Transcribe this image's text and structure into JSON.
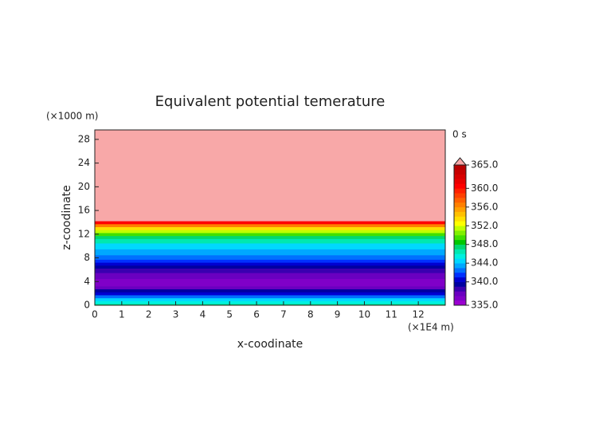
{
  "chart_data": {
    "type": "profile-contour",
    "title": "Equivalent potential temerature",
    "xlabel": "x-coodinate",
    "ylabel": "z-coodinate",
    "x_unit": "(×1E4 m)",
    "y_unit": "(×1000 m)",
    "time_label": "0 s",
    "xlim": [
      0,
      13
    ],
    "xticks": [
      0,
      1,
      2,
      3,
      4,
      5,
      6,
      7,
      8,
      9,
      10,
      11,
      12
    ],
    "ylim": [
      0,
      29.6
    ],
    "yticks": [
      0,
      4,
      8,
      12,
      16,
      20,
      24,
      28
    ],
    "z": [
      0,
      0.5,
      1,
      1.5,
      2,
      2.5,
      3,
      3.5,
      4,
      5,
      6,
      6.5,
      7,
      7.5,
      8,
      9,
      10,
      11,
      11.5,
      12,
      12.5,
      13,
      13.5,
      14,
      14.5,
      15,
      29.6
    ],
    "values": [
      347,
      345,
      344,
      342,
      340,
      339,
      337,
      336,
      336,
      337,
      338,
      339,
      340,
      341,
      342,
      343,
      344,
      346,
      347,
      349,
      351,
      353,
      356,
      360,
      366,
      366,
      366
    ],
    "colorbar": {
      "lim": [
        335,
        365
      ],
      "ticks": [
        {
          "value": 335,
          "label": "335.0"
        },
        {
          "value": 340,
          "label": "340.0"
        },
        {
          "value": 344,
          "label": "344.0"
        },
        {
          "value": 348,
          "label": "348.0"
        },
        {
          "value": 352,
          "label": "352.0"
        },
        {
          "value": 356,
          "label": "356.0"
        },
        {
          "value": 360,
          "label": "360.0"
        },
        {
          "value": 365,
          "label": "365.0"
        }
      ],
      "colors": [
        "#9b00d0",
        "#8000c8",
        "#6a00c0",
        "#3a00b0",
        "#0000a0",
        "#0000d0",
        "#0030ff",
        "#0070ff",
        "#00a8ff",
        "#00d8ff",
        "#00f0e0",
        "#00e8b0",
        "#00d870",
        "#00c800",
        "#40e000",
        "#80f000",
        "#c0ff00",
        "#ffff00",
        "#ffe000",
        "#ffc000",
        "#ffa000",
        "#ff8000",
        "#ff6000",
        "#ff4000",
        "#ff2000",
        "#ff0000",
        "#e80000",
        "#d80000",
        "#c80000",
        "#b80000"
      ],
      "over_color": "#f8a8a8"
    }
  }
}
